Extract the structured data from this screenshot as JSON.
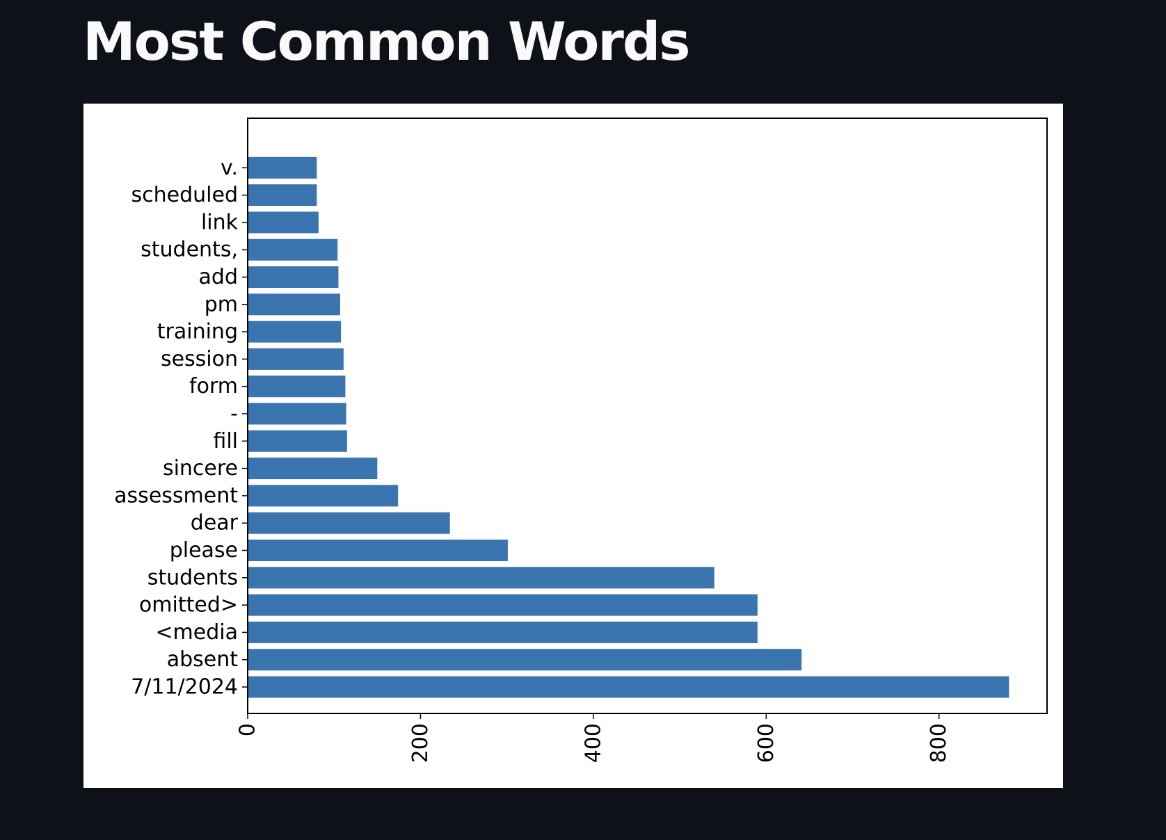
{
  "page": {
    "title": "Most Common Words"
  },
  "chart_data": {
    "type": "bar",
    "orientation": "horizontal",
    "title": "",
    "xlabel": "",
    "ylabel": "",
    "categories": [
      "7/11/2024",
      "absent",
      "<media",
      "omitted>",
      "students",
      "please",
      "dear",
      "assessment",
      "sincere",
      "fill",
      "-",
      "form",
      "session",
      "training",
      "pm",
      "add",
      "students,",
      "link",
      "scheduled",
      "v."
    ],
    "values": [
      881,
      641,
      590,
      590,
      540,
      301,
      234,
      174,
      150,
      115,
      114,
      113,
      111,
      108,
      107,
      105,
      104,
      82,
      80,
      80
    ],
    "xlim": [
      0,
      925
    ],
    "xticks": [
      0,
      200,
      400,
      600,
      800
    ],
    "xtick_rotation": 90,
    "bar_color": "#3b75af",
    "grid": false,
    "legend": "none"
  }
}
